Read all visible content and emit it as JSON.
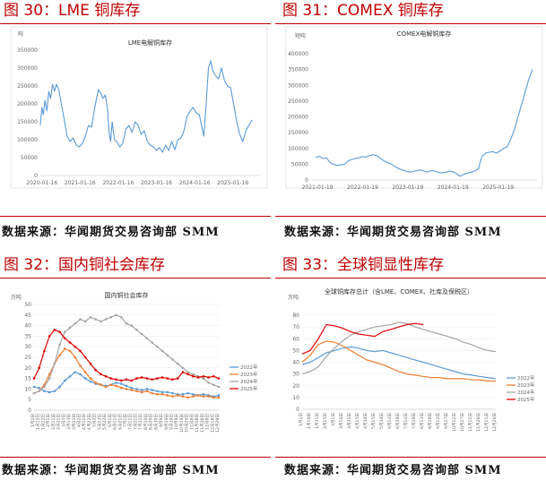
{
  "panels": [
    {
      "figure_title": "图 30：LME 铜库存",
      "source": "数据来源：华闻期货交易咨询部 SMM"
    },
    {
      "figure_title": "图 31：COMEX 铜库存",
      "source": "数据来源：华闻期货交易咨询部 SMM"
    },
    {
      "figure_title": "图 32：国内铜社会库存",
      "source": "数据来源：华闻期货交易咨询部 SMM"
    },
    {
      "figure_title": "图 33：全球铜显性库存",
      "source": "数据来源：华闻期货交易咨询部 SMM"
    }
  ],
  "chart_data": [
    {
      "type": "line",
      "title": "LME电解铜库存",
      "unit": "吨",
      "ylim": [
        0,
        350000
      ],
      "yticks": [
        "0",
        "50000",
        "100000",
        "150000",
        "200000",
        "250000",
        "300000",
        "350000"
      ],
      "xticks": [
        "2020-01-16",
        "2021-01-16",
        "2022-01-16",
        "2023-01-16",
        "2024-01-16",
        "2025-01-16"
      ],
      "series": [
        {
          "name": "LME电解铜库存",
          "color": "#5b9bd5",
          "x": [
            2020.0,
            2020.04,
            2020.08,
            2020.12,
            2020.17,
            2020.22,
            2020.27,
            2020.32,
            2020.37,
            2020.42,
            2020.48,
            2020.55,
            2020.62,
            2020.7,
            2020.78,
            2020.86,
            2020.94,
            2021.02,
            2021.1,
            2021.18,
            2021.26,
            2021.34,
            2021.4,
            2021.46,
            2021.52,
            2021.58,
            2021.64,
            2021.7,
            2021.76,
            2021.8,
            2021.84,
            2021.88,
            2021.94,
            2022.0,
            2022.08,
            2022.16,
            2022.24,
            2022.32,
            2022.4,
            2022.48,
            2022.56,
            2022.64,
            2022.72,
            2022.8,
            2022.88,
            2022.96,
            2023.04,
            2023.12,
            2023.2,
            2023.28,
            2023.36,
            2023.44,
            2023.52,
            2023.6,
            2023.68,
            2023.76,
            2023.84,
            2023.92,
            2024.0,
            2024.08,
            2024.16,
            2024.22,
            2024.28,
            2024.34,
            2024.4,
            2024.46,
            2024.52,
            2024.58,
            2024.66,
            2024.74,
            2024.82,
            2024.9,
            2024.98,
            2025.06,
            2025.14,
            2025.22,
            2025.3,
            2025.38,
            2025.46,
            2025.54
          ],
          "values": [
            140000,
            190000,
            170000,
            210000,
            180000,
            235000,
            215000,
            255000,
            235000,
            255000,
            240000,
            200000,
            160000,
            110000,
            95000,
            105000,
            85000,
            80000,
            90000,
            110000,
            140000,
            135000,
            175000,
            210000,
            240000,
            230000,
            215000,
            225000,
            185000,
            120000,
            95000,
            150000,
            100000,
            95000,
            80000,
            90000,
            130000,
            140000,
            120000,
            150000,
            140000,
            115000,
            125000,
            95000,
            85000,
            80000,
            70000,
            78000,
            65000,
            85000,
            70000,
            95000,
            72000,
            100000,
            105000,
            125000,
            165000,
            180000,
            190000,
            175000,
            170000,
            140000,
            110000,
            200000,
            300000,
            320000,
            290000,
            280000,
            270000,
            300000,
            265000,
            250000,
            245000,
            200000,
            150000,
            115000,
            95000,
            125000,
            140000,
            155000
          ]
        }
      ]
    },
    {
      "type": "line",
      "title": "COMEX电解铜库存",
      "unit": "短吨",
      "ylim": [
        0,
        400000
      ],
      "yticks": [
        "0",
        "50000",
        "100000",
        "150000",
        "200000",
        "250000",
        "300000",
        "350000",
        "400000"
      ],
      "xticks": [
        "2021-01-19",
        "2022-01-19",
        "2023-01-19",
        "2024-01-19",
        "2025-01-19"
      ],
      "series": [
        {
          "name": "COMEX电解铜库存",
          "color": "#5b9bd5",
          "x": [
            2021.0,
            2021.08,
            2021.16,
            2021.24,
            2021.32,
            2021.4,
            2021.48,
            2021.56,
            2021.64,
            2021.72,
            2021.8,
            2021.88,
            2021.96,
            2022.04,
            2022.12,
            2022.2,
            2022.28,
            2022.36,
            2022.44,
            2022.52,
            2022.6,
            2022.68,
            2022.76,
            2022.84,
            2022.92,
            2023.0,
            2023.08,
            2023.16,
            2023.24,
            2023.32,
            2023.4,
            2023.48,
            2023.56,
            2023.64,
            2023.72,
            2023.8,
            2023.88,
            2023.96,
            2024.04,
            2024.12,
            2024.2,
            2024.28,
            2024.36,
            2024.44,
            2024.52,
            2024.6,
            2024.68,
            2024.76,
            2024.84,
            2024.92,
            2025.0,
            2025.08,
            2025.16,
            2025.24,
            2025.32,
            2025.4,
            2025.48,
            2025.56,
            2025.64,
            2025.72,
            2025.8
          ],
          "values": [
            72000,
            75000,
            68000,
            70000,
            55000,
            50000,
            46000,
            48000,
            50000,
            60000,
            65000,
            68000,
            70000,
            74000,
            73000,
            78000,
            80000,
            77000,
            68000,
            60000,
            55000,
            50000,
            42000,
            36000,
            32000,
            28000,
            25000,
            27000,
            30000,
            32000,
            28000,
            25000,
            30000,
            28000,
            24000,
            22000,
            25000,
            28000,
            26000,
            20000,
            12000,
            18000,
            22000,
            25000,
            28000,
            35000,
            75000,
            85000,
            88000,
            90000,
            85000,
            92000,
            100000,
            105000,
            130000,
            160000,
            200000,
            240000,
            280000,
            320000,
            350000
          ]
        }
      ]
    },
    {
      "type": "line",
      "title": "国内铜社会库存",
      "unit": "万吨",
      "ylim": [
        0,
        50
      ],
      "yticks": [
        "0",
        "5",
        "10",
        "15",
        "20",
        "25",
        "30",
        "35",
        "40",
        "45",
        "50"
      ],
      "xticks": [
        "1月2日",
        "1月12日",
        "1月22日",
        "2月1日",
        "2月11日",
        "2月21日",
        "3月3日",
        "3月13日",
        "3月23日",
        "4月2日",
        "4月12日",
        "4月22日",
        "5月2日",
        "5月12日",
        "5月22日",
        "6月1日",
        "6月11日",
        "6月21日",
        "7月1日",
        "7月11日",
        "7月21日",
        "7月31日",
        "8月10日",
        "8月20日",
        "8月30日",
        "9月9日",
        "9月19日",
        "9月29日",
        "10月9日",
        "10月19日",
        "10月29日",
        "11月8日",
        "11月18日",
        "11月28日",
        "12月8日",
        "12月18日",
        "12月28日"
      ],
      "series": [
        {
          "name": "2022年",
          "color": "#5b9bd5",
          "values": [
            11,
            10.5,
            9,
            8.5,
            9,
            11,
            14,
            16,
            18,
            17,
            15,
            13.5,
            12.5,
            12,
            11.5,
            12,
            13,
            12.5,
            11.5,
            10.5,
            10,
            9.5,
            10,
            9.5,
            9,
            8.5,
            8.5,
            8,
            7.5,
            7.5,
            8,
            7.5,
            7,
            7.5,
            7,
            6.5,
            7
          ]
        },
        {
          "name": "2023年",
          "color": "#ed7d31",
          "values": [
            8,
            9,
            12,
            17,
            22,
            26,
            29,
            28,
            25,
            21,
            18,
            15,
            13,
            12,
            11,
            12,
            11.5,
            10.5,
            10,
            9.5,
            9,
            8.5,
            9,
            8,
            7.5,
            7.5,
            7,
            6.5,
            7,
            6.5,
            6,
            6.5,
            7,
            6.5,
            6.5,
            6,
            6
          ]
        },
        {
          "name": "2024年",
          "color": "#a5a5a5",
          "values": [
            8,
            9,
            11,
            15,
            22,
            31,
            37,
            39,
            41,
            43,
            42,
            44,
            43,
            42,
            43,
            44,
            45,
            44,
            41,
            40,
            38,
            36,
            34,
            32,
            30,
            28,
            26,
            24,
            22,
            20,
            18,
            17,
            16,
            15,
            13,
            12,
            11
          ]
        },
        {
          "name": "2025年",
          "color": "#e00000",
          "values": [
            15,
            20,
            28,
            35,
            38,
            37,
            34,
            32,
            30,
            28,
            25,
            22,
            19,
            17,
            16,
            15,
            14.5,
            14,
            14.5,
            14,
            15,
            15.5,
            15,
            14.5,
            15,
            15.5,
            15,
            14.5,
            15,
            18,
            17,
            16,
            15.5,
            16,
            15.5,
            16,
            15
          ]
        }
      ]
    },
    {
      "type": "line",
      "title": "全球铜库存总计（含LME、COMEX、社库及保税区）",
      "unit": "万吨",
      "ylim": [
        0,
        80
      ],
      "yticks": [
        "0",
        "10",
        "20",
        "30",
        "40",
        "50",
        "60",
        "70",
        "80"
      ],
      "xticks": [
        "1月1日",
        "1月16日",
        "1月31日",
        "2月15日",
        "3月1日",
        "3月16日",
        "3月31日",
        "4月15日",
        "4月30日",
        "5月15日",
        "5月30日",
        "6月14日",
        "6月29日",
        "7月14日",
        "7月29日",
        "8月13日",
        "8月28日",
        "9月12日",
        "9月27日",
        "10月12日",
        "10月27日",
        "11月11日",
        "11月26日",
        "12月11日",
        "12月26日"
      ],
      "series": [
        {
          "name": "2022年",
          "color": "#5b9bd5",
          "values": [
            38,
            40,
            44,
            48,
            50,
            52,
            53,
            52,
            50,
            49,
            50,
            48,
            46,
            44,
            42,
            40,
            38,
            36,
            34,
            32,
            30,
            29,
            28,
            27,
            26
          ]
        },
        {
          "name": "2023年",
          "color": "#ed7d31",
          "values": [
            40,
            46,
            55,
            58,
            57,
            54,
            50,
            46,
            42,
            40,
            38,
            35,
            32,
            30,
            29,
            28,
            27,
            27,
            26,
            26,
            26,
            25,
            25,
            24,
            24
          ]
        },
        {
          "name": "2024年",
          "color": "#a5a5a5",
          "values": [
            30,
            32,
            36,
            45,
            52,
            58,
            63,
            66,
            68,
            70,
            71,
            72,
            74,
            73,
            70,
            68,
            66,
            64,
            62,
            60,
            57,
            55,
            52,
            50,
            49
          ]
        },
        {
          "name": "2025年",
          "color": "#e00000",
          "values": [
            47,
            50,
            60,
            72,
            71,
            69,
            66,
            64,
            63,
            62,
            66,
            68,
            70,
            72,
            73,
            72
          ]
        }
      ],
      "legend": [
        "2022年",
        "2023年",
        "2024年",
        "2025年"
      ]
    }
  ]
}
